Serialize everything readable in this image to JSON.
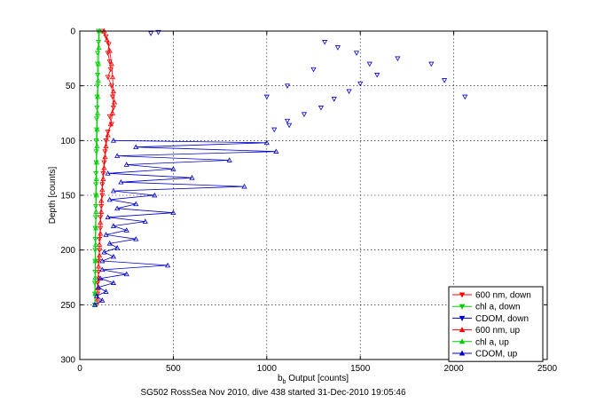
{
  "chart_data": {
    "type": "scatter",
    "title": "",
    "xlabel_main": "b",
    "xlabel_sub": "b",
    "xlabel_rest": " Output [counts]",
    "ylabel": "Depth [counts]",
    "caption": "SG502 RossSea Nov 2010, dive 438 started 31-Dec-2010 19:05:46",
    "xlim": [
      0,
      2500
    ],
    "ylim": [
      0,
      300
    ],
    "y_reversed": true,
    "grid": true,
    "legend_position": "bottom-right",
    "x_ticks": [
      0,
      500,
      1000,
      1500,
      2000,
      2500
    ],
    "y_ticks": [
      0,
      50,
      100,
      150,
      200,
      250,
      300
    ],
    "x_tick_labels": [
      "0",
      "500",
      "1000",
      "1500",
      "2000",
      "2500"
    ],
    "y_tick_labels": [
      "0",
      "50",
      "100",
      "150",
      "200",
      "250",
      "300"
    ],
    "series": [
      {
        "name": "600 nm, down",
        "color": "#ff0000",
        "marker": "triangle-down",
        "line": true,
        "points": [
          [
            120,
            0
          ],
          [
            140,
            5
          ],
          [
            155,
            12
          ],
          [
            150,
            20
          ],
          [
            160,
            28
          ],
          [
            165,
            35
          ],
          [
            150,
            42
          ],
          [
            170,
            50
          ],
          [
            175,
            60
          ],
          [
            180,
            70
          ],
          [
            160,
            78
          ],
          [
            170,
            85
          ],
          [
            150,
            92
          ],
          [
            140,
            100
          ],
          [
            135,
            110
          ],
          [
            130,
            120
          ],
          [
            125,
            130
          ],
          [
            120,
            140
          ],
          [
            120,
            150
          ],
          [
            115,
            160
          ],
          [
            110,
            170
          ],
          [
            110,
            180
          ],
          [
            105,
            190
          ],
          [
            105,
            200
          ],
          [
            100,
            210
          ],
          [
            100,
            220
          ],
          [
            95,
            230
          ],
          [
            95,
            240
          ],
          [
            90,
            250
          ]
        ]
      },
      {
        "name": "chl a, down",
        "color": "#00cc00",
        "marker": "triangle-down",
        "line": true,
        "points": [
          [
            100,
            0
          ],
          [
            100,
            10
          ],
          [
            95,
            20
          ],
          [
            95,
            30
          ],
          [
            95,
            40
          ],
          [
            95,
            50
          ],
          [
            92,
            60
          ],
          [
            92,
            70
          ],
          [
            90,
            80
          ],
          [
            90,
            90
          ],
          [
            88,
            100
          ],
          [
            88,
            110
          ],
          [
            88,
            120
          ],
          [
            86,
            130
          ],
          [
            86,
            140
          ],
          [
            85,
            150
          ],
          [
            85,
            160
          ],
          [
            85,
            170
          ],
          [
            83,
            180
          ],
          [
            83,
            190
          ],
          [
            82,
            200
          ],
          [
            82,
            210
          ],
          [
            82,
            220
          ],
          [
            80,
            230
          ],
          [
            80,
            240
          ],
          [
            80,
            250
          ]
        ]
      },
      {
        "name": "CDOM, down",
        "color": "#0000cc",
        "marker": "triangle-down",
        "line": false,
        "points": [
          [
            380,
            2
          ],
          [
            420,
            1
          ],
          [
            1310,
            10
          ],
          [
            1380,
            15
          ],
          [
            1480,
            20
          ],
          [
            1550,
            30
          ],
          [
            1590,
            40
          ],
          [
            1500,
            48
          ],
          [
            1440,
            55
          ],
          [
            1360,
            62
          ],
          [
            1290,
            70
          ],
          [
            1200,
            76
          ],
          [
            1110,
            82
          ],
          [
            1040,
            90
          ],
          [
            1120,
            86
          ],
          [
            1950,
            45
          ],
          [
            2060,
            60
          ],
          [
            1880,
            30
          ],
          [
            1700,
            25
          ],
          [
            1250,
            35
          ],
          [
            1110,
            50
          ],
          [
            1000,
            60
          ]
        ]
      },
      {
        "name": "600 nm, up",
        "color": "#ff0000",
        "marker": "triangle-up",
        "line": true,
        "points": [
          [
            130,
            0
          ],
          [
            145,
            8
          ],
          [
            160,
            18
          ],
          [
            170,
            30
          ],
          [
            175,
            42
          ],
          [
            180,
            55
          ],
          [
            185,
            65
          ],
          [
            175,
            75
          ],
          [
            165,
            85
          ],
          [
            150,
            95
          ],
          [
            140,
            105
          ],
          [
            135,
            115
          ],
          [
            130,
            125
          ],
          [
            125,
            135
          ],
          [
            120,
            145
          ],
          [
            115,
            155
          ],
          [
            115,
            165
          ],
          [
            110,
            175
          ],
          [
            110,
            185
          ],
          [
            105,
            195
          ],
          [
            105,
            205
          ],
          [
            100,
            215
          ],
          [
            100,
            225
          ],
          [
            95,
            235
          ],
          [
            95,
            245
          ]
        ]
      },
      {
        "name": "chl a, up",
        "color": "#00cc00",
        "marker": "triangle-up",
        "line": true,
        "points": [
          [
            105,
            0
          ],
          [
            102,
            15
          ],
          [
            100,
            30
          ],
          [
            98,
            45
          ],
          [
            96,
            60
          ],
          [
            95,
            75
          ],
          [
            93,
            90
          ],
          [
            92,
            105
          ],
          [
            90,
            120
          ],
          [
            89,
            135
          ],
          [
            88,
            150
          ],
          [
            87,
            165
          ],
          [
            86,
            180
          ],
          [
            85,
            195
          ],
          [
            84,
            210
          ],
          [
            83,
            225
          ],
          [
            82,
            240
          ],
          [
            81,
            250
          ]
        ]
      },
      {
        "name": "CDOM, up",
        "color": "#0000cc",
        "marker": "triangle-up",
        "line": true,
        "points": [
          [
            180,
            100
          ],
          [
            1000,
            102
          ],
          [
            300,
            106
          ],
          [
            1050,
            110
          ],
          [
            200,
            114
          ],
          [
            800,
            118
          ],
          [
            250,
            122
          ],
          [
            500,
            126
          ],
          [
            150,
            130
          ],
          [
            600,
            134
          ],
          [
            220,
            138
          ],
          [
            880,
            142
          ],
          [
            180,
            146
          ],
          [
            400,
            150
          ],
          [
            160,
            154
          ],
          [
            300,
            158
          ],
          [
            200,
            162
          ],
          [
            500,
            166
          ],
          [
            150,
            170
          ],
          [
            350,
            174
          ],
          [
            180,
            178
          ],
          [
            250,
            182
          ],
          [
            140,
            186
          ],
          [
            300,
            190
          ],
          [
            160,
            194
          ],
          [
            200,
            198
          ],
          [
            130,
            202
          ],
          [
            180,
            206
          ],
          [
            120,
            210
          ],
          [
            470,
            214
          ],
          [
            120,
            218
          ],
          [
            250,
            222
          ],
          [
            110,
            226
          ],
          [
            180,
            230
          ],
          [
            100,
            234
          ],
          [
            140,
            238
          ],
          [
            90,
            242
          ],
          [
            120,
            246
          ],
          [
            80,
            250
          ]
        ]
      }
    ]
  }
}
